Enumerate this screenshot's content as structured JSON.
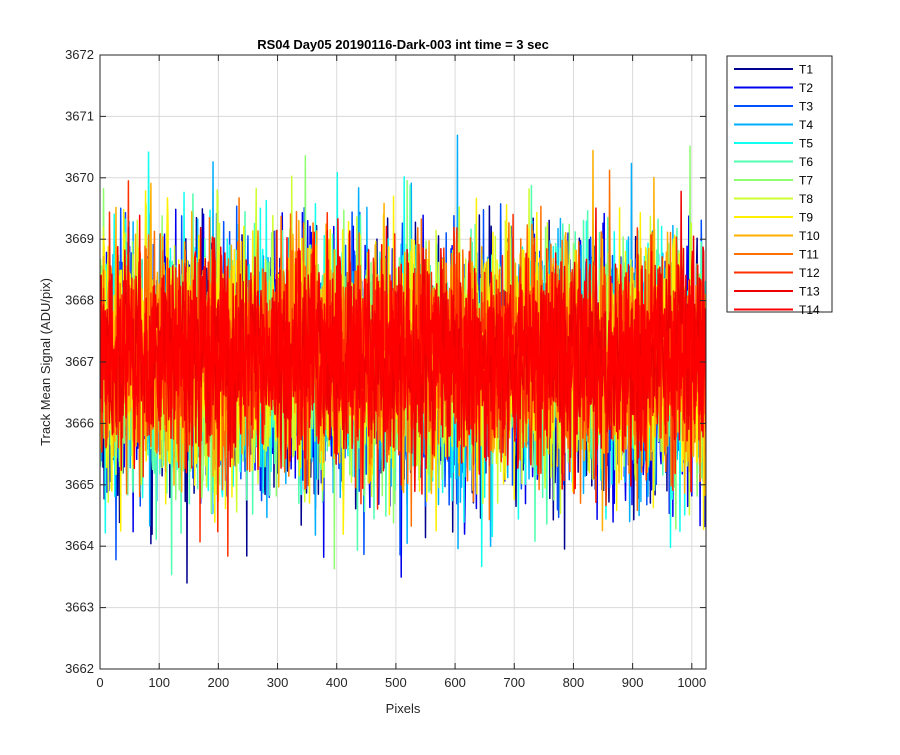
{
  "chart_data": {
    "type": "line",
    "title": "RS04 Day05 20190116-Dark-003 int time = 3 sec",
    "xlabel": "Pixels",
    "ylabel": "Track Mean Signal (ADU/pix)",
    "xlim": [
      0,
      1024
    ],
    "ylim": [
      3662,
      3672
    ],
    "xticks": [
      0,
      100,
      200,
      300,
      400,
      500,
      600,
      700,
      800,
      900,
      1000
    ],
    "yticks": [
      3662,
      3663,
      3664,
      3665,
      3666,
      3667,
      3668,
      3669,
      3670,
      3671,
      3672
    ],
    "grid": true,
    "legend_position": "outside-top-right",
    "colormap": "jet",
    "series": [
      {
        "name": "T1",
        "color": "#00008f",
        "mean": 3666.9,
        "sd": 1.0,
        "min": 3663.1,
        "max": 3669.6
      },
      {
        "name": "T2",
        "color": "#0000ef",
        "mean": 3666.9,
        "sd": 1.0,
        "min": 3663.4,
        "max": 3669.5
      },
      {
        "name": "T3",
        "color": "#0050ff",
        "mean": 3666.9,
        "sd": 1.0,
        "min": 3663.6,
        "max": 3669.6
      },
      {
        "name": "T4",
        "color": "#00afff",
        "mean": 3666.9,
        "sd": 1.0,
        "min": 3662.95,
        "max": 3670.9
      },
      {
        "name": "T5",
        "color": "#10ffef",
        "mean": 3667.0,
        "sd": 1.0,
        "min": 3663.4,
        "max": 3671.1
      },
      {
        "name": "T6",
        "color": "#50ffaf",
        "mean": 3667.0,
        "sd": 1.0,
        "min": 3663.5,
        "max": 3670.4
      },
      {
        "name": "T7",
        "color": "#8fff70",
        "mean": 3667.0,
        "sd": 1.0,
        "min": 3663.5,
        "max": 3670.6
      },
      {
        "name": "T8",
        "color": "#cfff30",
        "mean": 3667.0,
        "sd": 0.95,
        "min": 3663.7,
        "max": 3670.2
      },
      {
        "name": "T9",
        "color": "#ffef00",
        "mean": 3667.1,
        "sd": 0.95,
        "min": 3664.0,
        "max": 3670.0
      },
      {
        "name": "T10",
        "color": "#ffaf00",
        "mean": 3667.1,
        "sd": 0.9,
        "min": 3664.1,
        "max": 3670.9
      },
      {
        "name": "T11",
        "color": "#ff7000",
        "mean": 3667.1,
        "sd": 0.9,
        "min": 3663.1,
        "max": 3670.2
      },
      {
        "name": "T12",
        "color": "#ff3000",
        "mean": 3667.1,
        "sd": 0.85,
        "min": 3663.4,
        "max": 3670.2
      },
      {
        "name": "T13",
        "color": "#ef0000",
        "mean": 3667.1,
        "sd": 0.8,
        "min": 3664.5,
        "max": 3670.3
      },
      {
        "name": "T14",
        "color": "#ff0000",
        "mean": 3667.1,
        "sd": 0.75,
        "min": 3664.8,
        "max": 3670.3
      }
    ]
  }
}
